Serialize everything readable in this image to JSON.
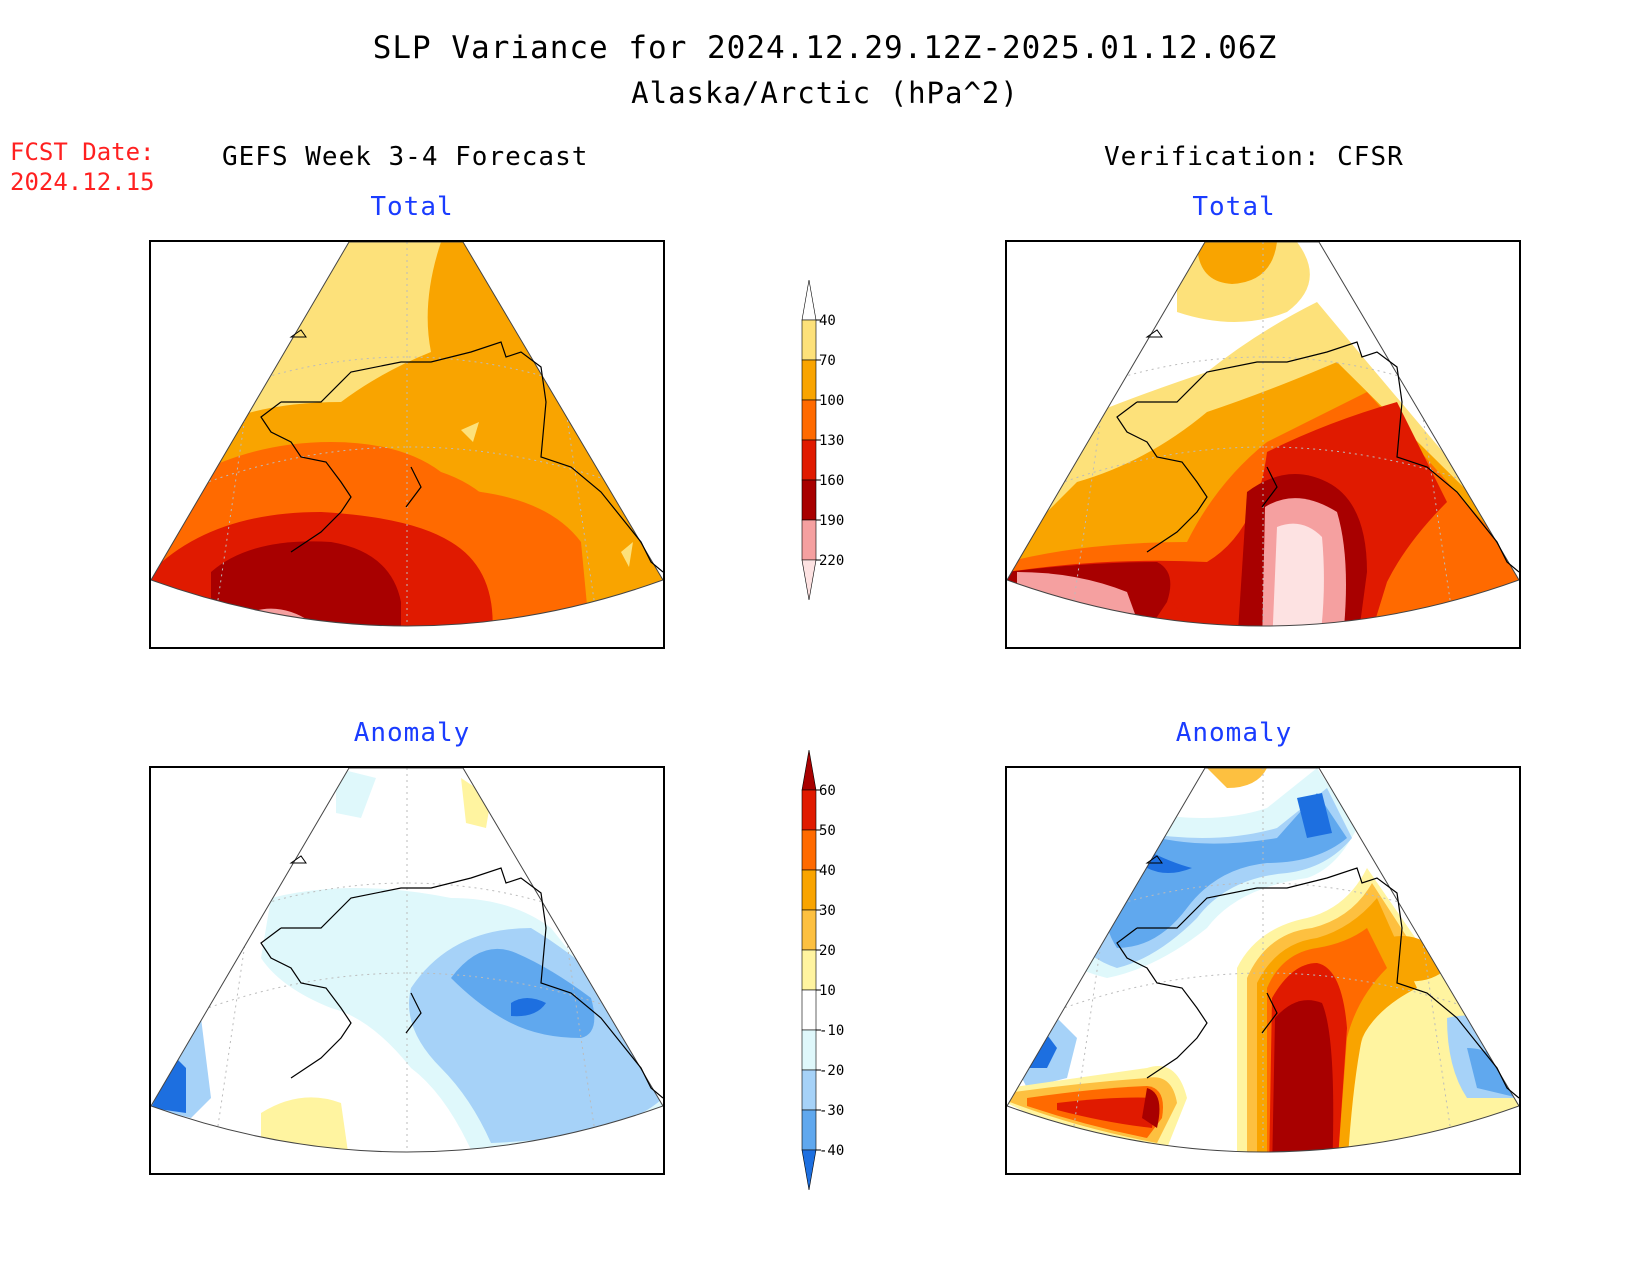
{
  "header": {
    "title": "SLP Variance for 2024.12.29.12Z-2025.01.12.06Z",
    "subtitle": "Alaska/Arctic (hPa^2)",
    "fcst_label": "FCST Date:",
    "fcst_date": "2024.12.15",
    "forecast_heading": "GEFS Week 3-4 Forecast",
    "verification_heading": "Verification: CFSR"
  },
  "panels": {
    "forecast_total": {
      "title": "Total"
    },
    "forecast_anomaly": {
      "title": "Anomaly"
    },
    "verification_total": {
      "title": "Total"
    },
    "verification_anomaly": {
      "title": "Anomaly"
    }
  },
  "colorbars": {
    "total": {
      "labels": [
        "40",
        "70",
        "100",
        "130",
        "160",
        "190",
        "220"
      ],
      "colors": [
        "#ffffff",
        "#fde17a",
        "#f9a400",
        "#ff6a00",
        "#e01a00",
        "#a80000",
        "#f5a0a0",
        "#fde2e2"
      ]
    },
    "anomaly": {
      "labels": [
        "60",
        "50",
        "40",
        "30",
        "20",
        "10",
        "-10",
        "-20",
        "-30",
        "-40"
      ],
      "colors": [
        "#a80000",
        "#e01a00",
        "#ff6a00",
        "#f9a400",
        "#fdc040",
        "#fff4a0",
        "#ffffff",
        "#dff8fb",
        "#a6d2f8",
        "#60a8ee",
        "#1d6fe0"
      ]
    }
  },
  "colors": {
    "title_blue": "#1a3cff",
    "fcst_red": "#ff2020"
  }
}
